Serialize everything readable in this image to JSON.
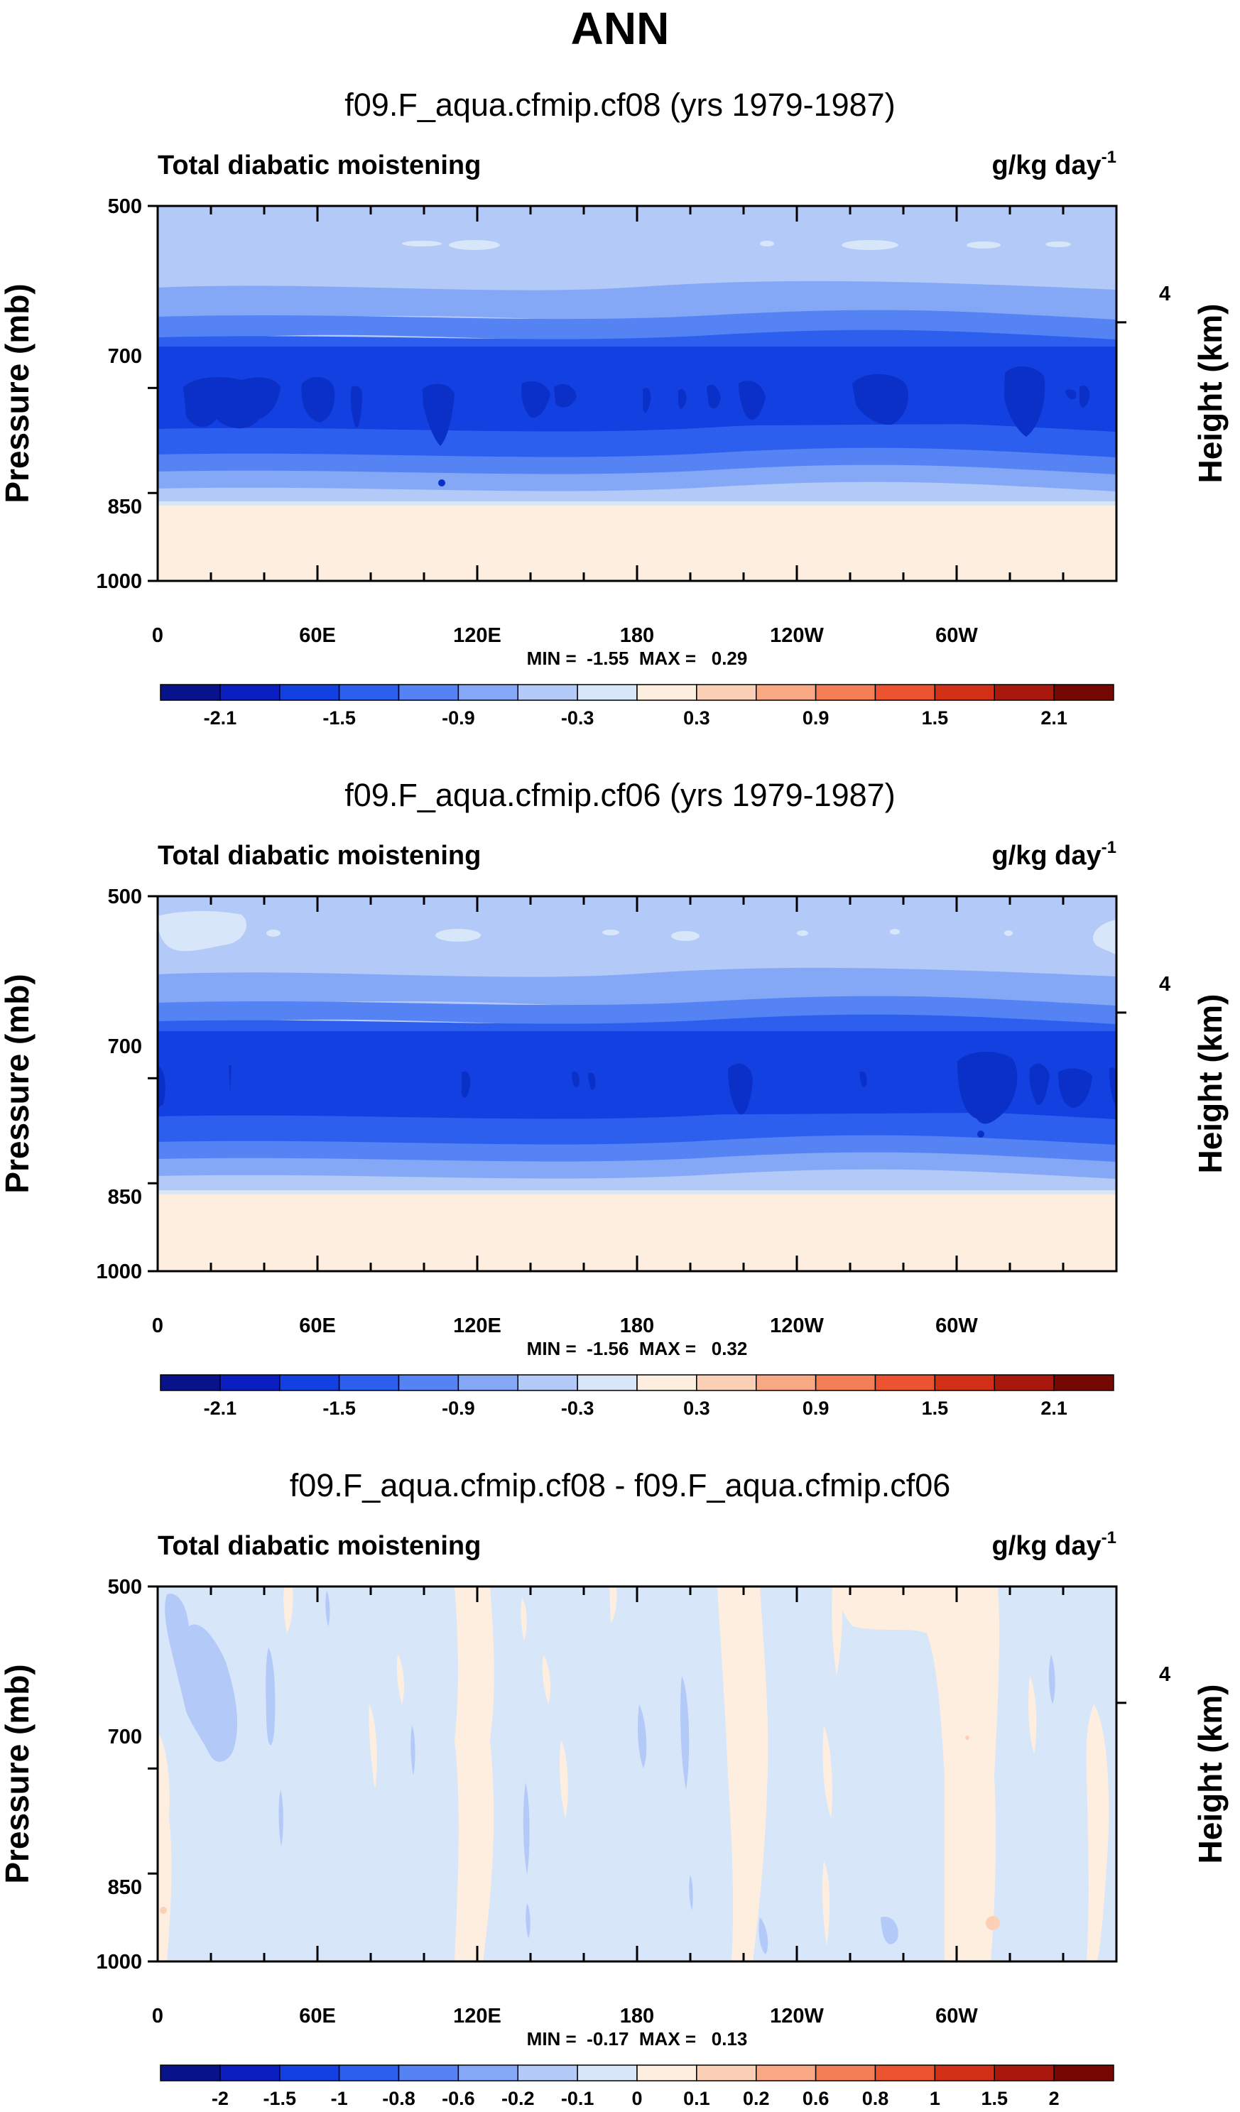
{
  "title": "ANN",
  "colorbar_colors": [
    "#08128a",
    "#0b1fc0",
    "#1340e0",
    "#2c5fee",
    "#5583f3",
    "#85a8f6",
    "#b3c9f8",
    "#d8e6fa",
    "#fdeee0",
    "#fbd0b6",
    "#f8a983",
    "#f47e56",
    "#ec5431",
    "#d22f17",
    "#a9180c",
    "#760804"
  ],
  "chart_data": [
    {
      "type": "heatmap",
      "title": "f09.F_aqua.cfmip.cf08 (yrs 1979-1987)",
      "left_label": "Total diabatic moistening",
      "right_label_main": "g/kg day",
      "right_label_sup": "-1",
      "ylabel": "Pressure (mb)",
      "ylabel_right": "Height (km)",
      "yticks": [
        "500",
        "700",
        "850",
        "1000"
      ],
      "yticks_right": [
        "4"
      ],
      "xticks": [
        "0",
        "60E",
        "120E",
        "180",
        "120W",
        "60W"
      ],
      "stats": "MIN =  -1.55  MAX =   0.29",
      "min": -1.55,
      "max": 0.29,
      "colorbar_labels": [
        "-2.1",
        "-1.5",
        "-0.9",
        "-0.3",
        "0.3",
        "0.9",
        "1.5",
        "2.1"
      ]
    },
    {
      "type": "heatmap",
      "title": "f09.F_aqua.cfmip.cf06 (yrs 1979-1987)",
      "left_label": "Total diabatic moistening",
      "right_label_main": "g/kg day",
      "right_label_sup": "-1",
      "ylabel": "Pressure (mb)",
      "ylabel_right": "Height (km)",
      "yticks": [
        "500",
        "700",
        "850",
        "1000"
      ],
      "yticks_right": [
        "4"
      ],
      "xticks": [
        "0",
        "60E",
        "120E",
        "180",
        "120W",
        "60W"
      ],
      "stats": "MIN =  -1.56  MAX =   0.32",
      "min": -1.56,
      "max": 0.32,
      "colorbar_labels": [
        "-2.1",
        "-1.5",
        "-0.9",
        "-0.3",
        "0.3",
        "0.9",
        "1.5",
        "2.1"
      ]
    },
    {
      "type": "heatmap",
      "title": "f09.F_aqua.cfmip.cf08 - f09.F_aqua.cfmip.cf06",
      "left_label": "Total diabatic moistening",
      "right_label_main": "g/kg day",
      "right_label_sup": "-1",
      "ylabel": "Pressure (mb)",
      "ylabel_right": "Height (km)",
      "yticks": [
        "500",
        "700",
        "850",
        "1000"
      ],
      "yticks_right": [
        "4"
      ],
      "xticks": [
        "0",
        "60E",
        "120E",
        "180",
        "120W",
        "60W"
      ],
      "stats": "MIN =  -0.17  MAX =   0.13",
      "min": -0.17,
      "max": 0.13,
      "colorbar_labels": [
        "-2",
        "-1.5",
        "-1",
        "-0.8",
        "-0.6",
        "-0.2",
        "-0.1",
        "0",
        "0.1",
        "0.2",
        "0.6",
        "0.8",
        "1",
        "1.5",
        "2"
      ]
    }
  ]
}
